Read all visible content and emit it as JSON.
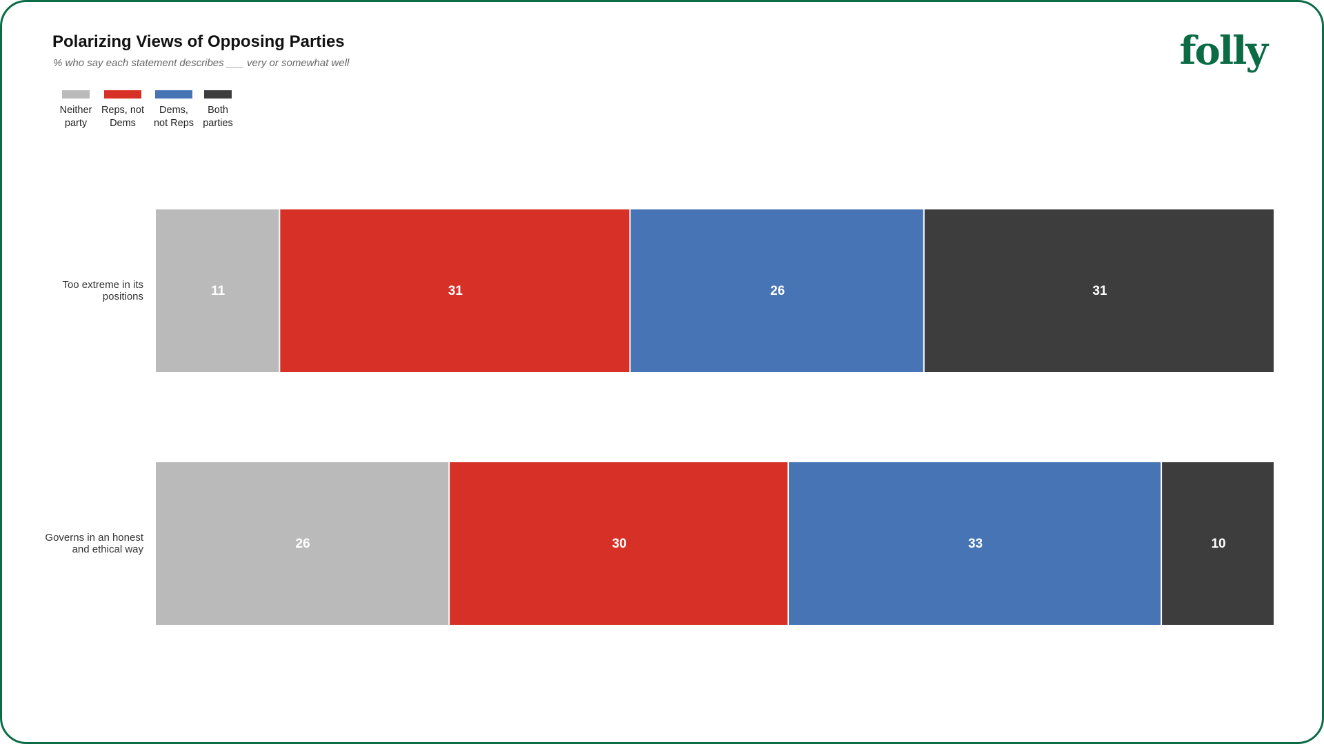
{
  "chart_data": {
    "type": "stacked-bar",
    "orientation": "horizontal",
    "title": "Polarizing Views of Opposing Parties",
    "subtitle": "% who say each statement describes ___ very or somewhat well",
    "logo": "folly",
    "categories": [
      "Too extreme in its positions",
      "Governs in an honest and ethical way"
    ],
    "series": [
      {
        "name": "Neither party",
        "color": "#bababa",
        "values": [
          11,
          26
        ]
      },
      {
        "name": "Reps, not Dems",
        "color": "#d63027",
        "values": [
          31,
          30
        ]
      },
      {
        "name": "Dems, not Reps",
        "color": "#4674b5",
        "values": [
          26,
          33
        ]
      },
      {
        "name": "Both parties",
        "color": "#3d3d3d",
        "values": [
          31,
          10
        ]
      }
    ],
    "xlim": [
      0,
      99
    ]
  }
}
